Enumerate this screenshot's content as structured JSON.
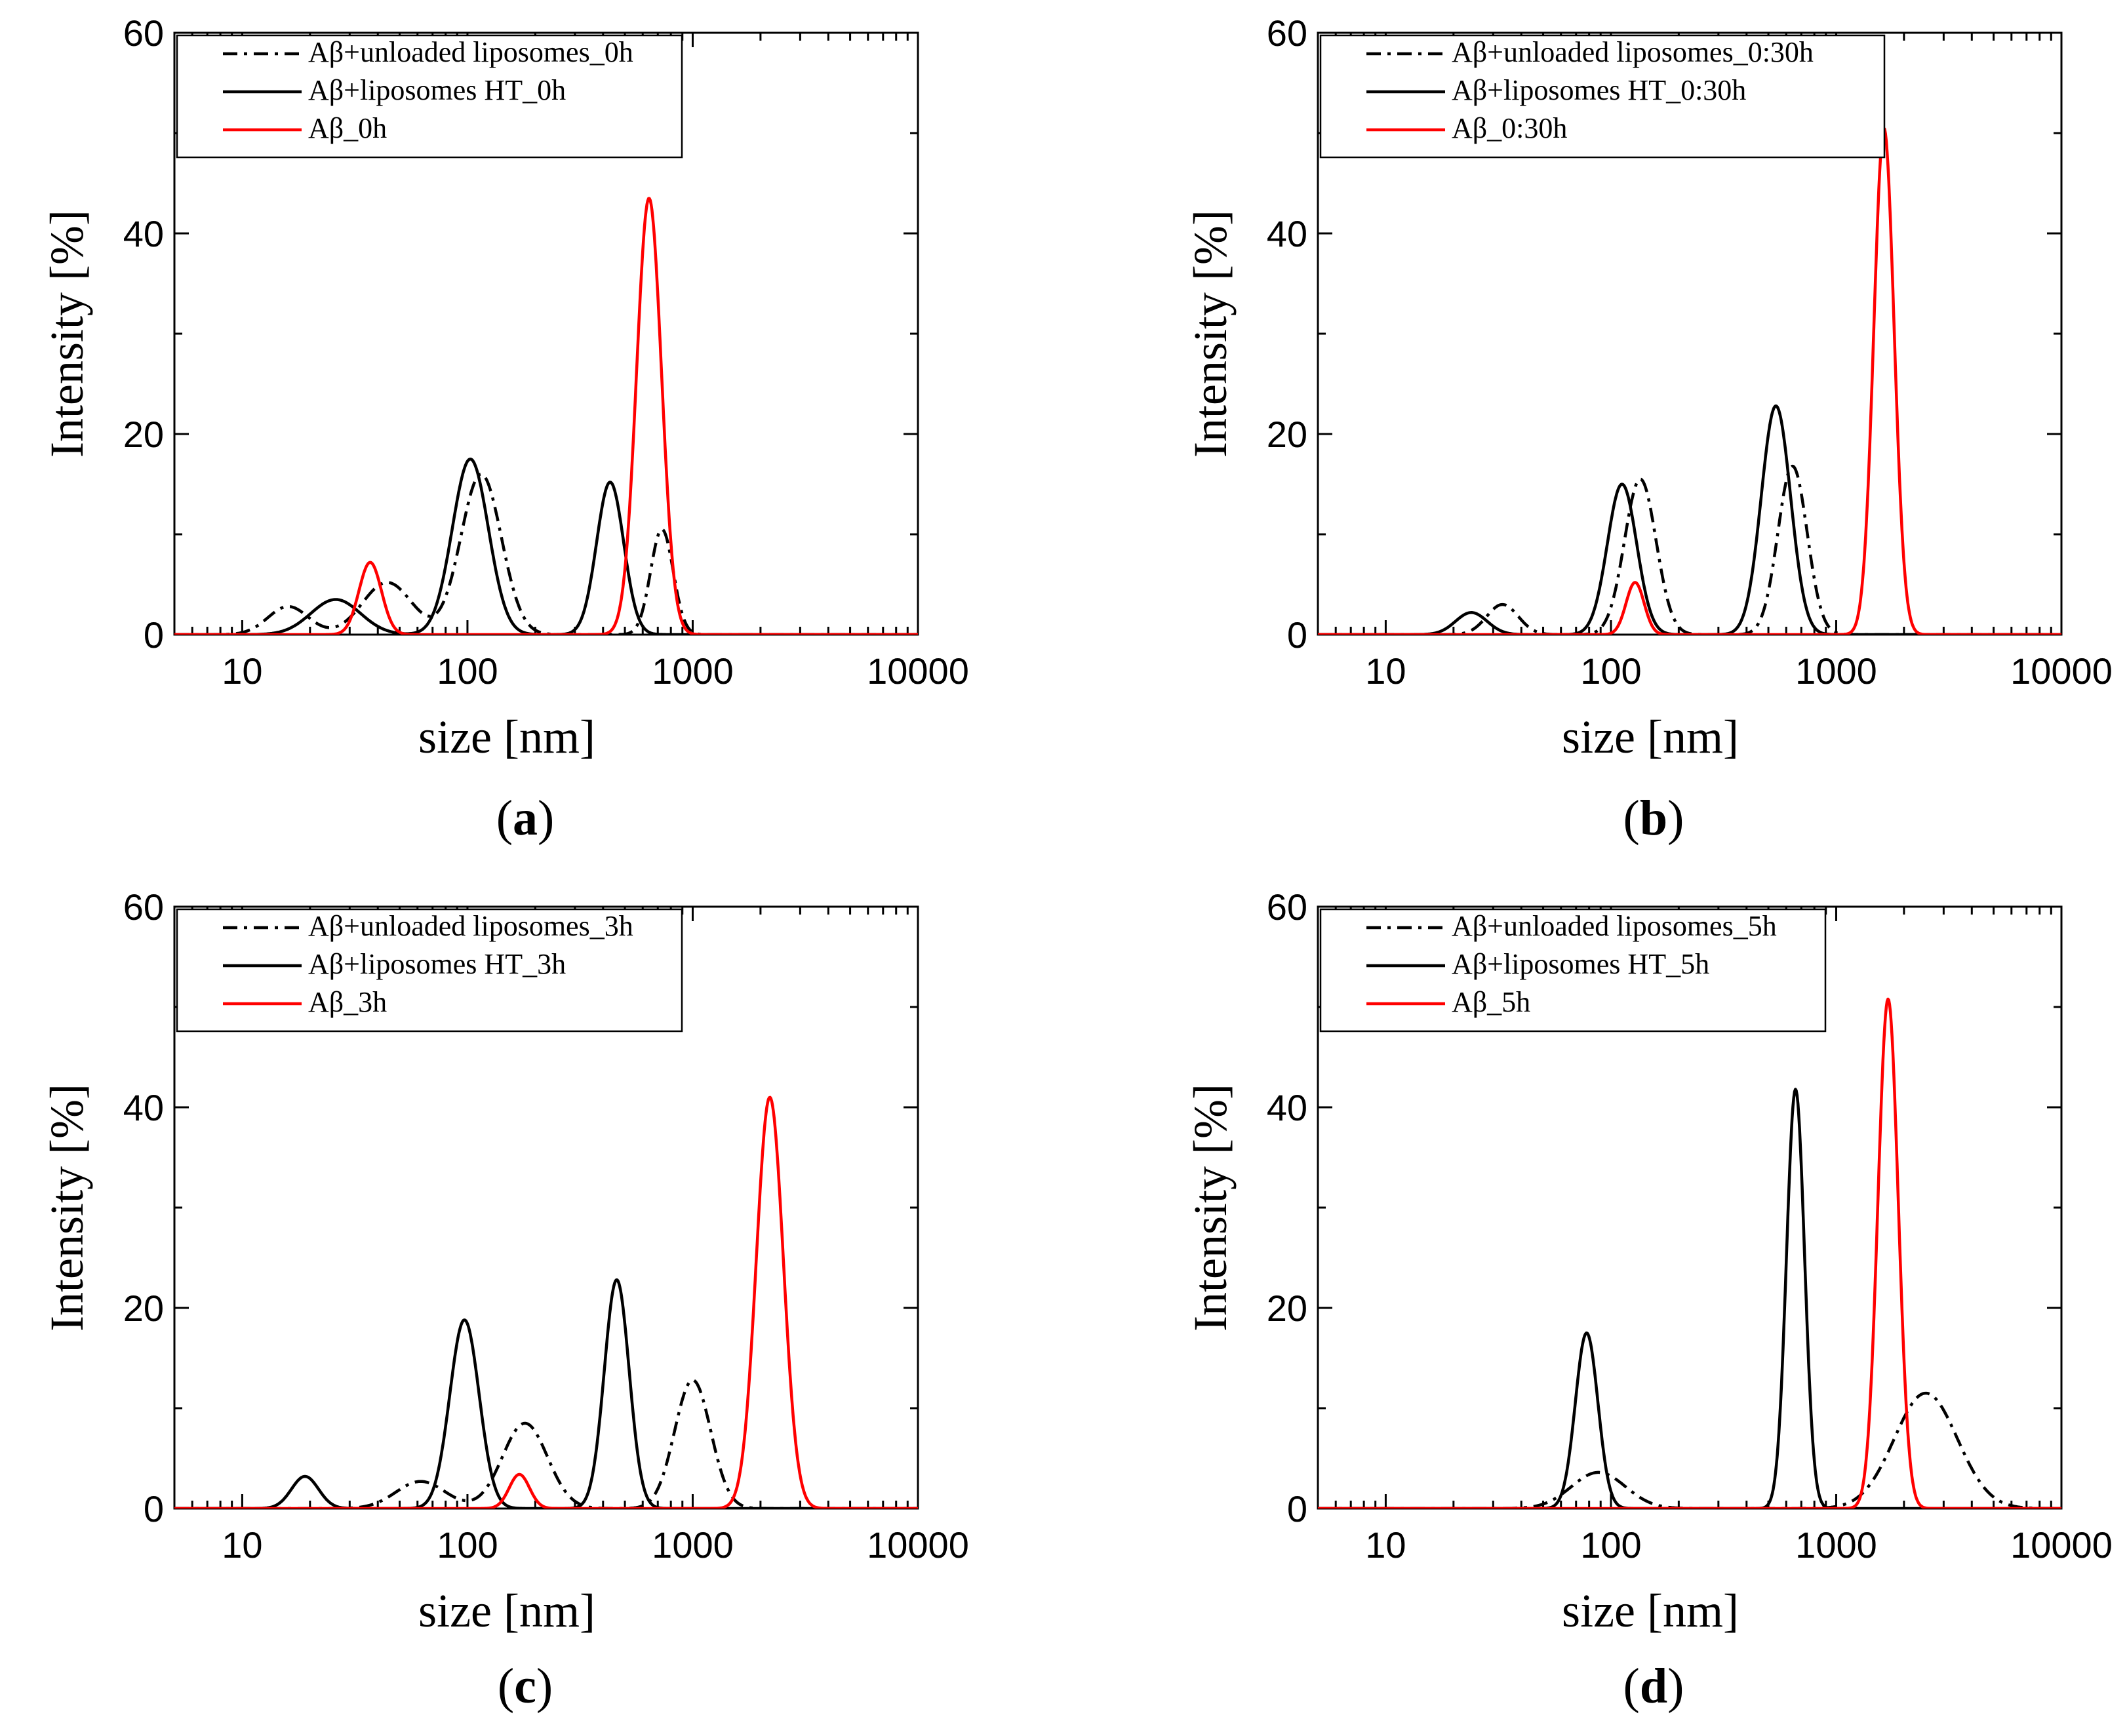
{
  "colors": {
    "black": "#000000",
    "red": "#ff0000"
  },
  "chart_data": [
    {
      "panel_label": "a",
      "type": "line",
      "title": "",
      "xlabel": "size [nm]",
      "ylabel": "Intensity [%]",
      "xscale": "log",
      "xlim": [
        5,
        10000
      ],
      "ylim": [
        0,
        60
      ],
      "xticks": [
        10,
        100,
        1000,
        10000
      ],
      "xtick_labels": [
        "10",
        "100",
        "1000",
        "10000"
      ],
      "yticks": [
        0,
        20,
        40,
        60
      ],
      "ytick_labels": [
        "0",
        "20",
        "40",
        "60"
      ],
      "legend_position": "top-left",
      "series": [
        {
          "name": "Aβ+unloaded liposomes_0h",
          "style": "dashdot",
          "color": "#000000",
          "peaks": [
            {
              "center": 16,
              "height": 2.8,
              "width": 0.09
            },
            {
              "center": 44,
              "height": 5.2,
              "width": 0.11
            },
            {
              "center": 115,
              "height": 16,
              "width": 0.09
            },
            {
              "center": 730,
              "height": 10.5,
              "width": 0.05
            }
          ]
        },
        {
          "name": "Aβ+liposomes HT_0h",
          "style": "solid",
          "color": "#000000",
          "peaks": [
            {
              "center": 26,
              "height": 3.5,
              "width": 0.11
            },
            {
              "center": 103,
              "height": 17.5,
              "width": 0.08
            },
            {
              "center": 430,
              "height": 15.2,
              "width": 0.06
            }
          ]
        },
        {
          "name": "Aβ_0h",
          "style": "solid",
          "color": "#ff0000",
          "peaks": [
            {
              "center": 37,
              "height": 7.2,
              "width": 0.05
            },
            {
              "center": 640,
              "height": 43.5,
              "width": 0.055
            }
          ]
        }
      ]
    },
    {
      "panel_label": "b",
      "type": "line",
      "title": "",
      "xlabel": "size [nm]",
      "ylabel": "Intensity [%]",
      "xscale": "log",
      "xlim": [
        5,
        10000
      ],
      "ylim": [
        0,
        60
      ],
      "xticks": [
        10,
        100,
        1000,
        10000
      ],
      "xtick_labels": [
        "10",
        "100",
        "1000",
        "10000"
      ],
      "yticks": [
        0,
        20,
        40,
        60
      ],
      "ytick_labels": [
        "0",
        "20",
        "40",
        "60"
      ],
      "legend_position": "top-left",
      "series": [
        {
          "name": "Aβ+unloaded liposomes_0:30h",
          "style": "dashdot",
          "color": "#000000",
          "peaks": [
            {
              "center": 33,
              "height": 3.0,
              "width": 0.07
            },
            {
              "center": 135,
              "height": 15.5,
              "width": 0.07
            },
            {
              "center": 640,
              "height": 16.8,
              "width": 0.065
            }
          ]
        },
        {
          "name": "Aβ+liposomes HT_0:30h",
          "style": "solid",
          "color": "#000000",
          "peaks": [
            {
              "center": 24,
              "height": 2.2,
              "width": 0.07
            },
            {
              "center": 112,
              "height": 15.0,
              "width": 0.065
            },
            {
              "center": 540,
              "height": 22.8,
              "width": 0.065
            }
          ]
        },
        {
          "name": "Aβ_0:30h",
          "style": "solid",
          "color": "#ff0000",
          "peaks": [
            {
              "center": 128,
              "height": 5.2,
              "width": 0.04
            },
            {
              "center": 1630,
              "height": 50.5,
              "width": 0.045
            }
          ]
        }
      ]
    },
    {
      "panel_label": "c",
      "type": "line",
      "title": "",
      "xlabel": "size [nm]",
      "ylabel": "Intensity [%]",
      "xscale": "log",
      "xlim": [
        5,
        10000
      ],
      "ylim": [
        0,
        60
      ],
      "xticks": [
        10,
        100,
        1000,
        10000
      ],
      "xtick_labels": [
        "10",
        "100",
        "1000",
        "10000"
      ],
      "yticks": [
        0,
        20,
        40,
        60
      ],
      "ytick_labels": [
        "0",
        "20",
        "40",
        "60"
      ],
      "legend_position": "top-left",
      "series": [
        {
          "name": "Aβ+unloaded liposomes_3h",
          "style": "dashdot",
          "color": "#000000",
          "peaks": [
            {
              "center": 62,
              "height": 2.7,
              "width": 0.11
            },
            {
              "center": 180,
              "height": 8.5,
              "width": 0.1
            },
            {
              "center": 1000,
              "height": 12.8,
              "width": 0.08
            }
          ]
        },
        {
          "name": "Aβ+liposomes HT_3h",
          "style": "solid",
          "color": "#000000",
          "peaks": [
            {
              "center": 19,
              "height": 3.2,
              "width": 0.06
            },
            {
              "center": 97,
              "height": 18.8,
              "width": 0.065
            },
            {
              "center": 460,
              "height": 22.8,
              "width": 0.055
            }
          ]
        },
        {
          "name": "Aβ_3h",
          "style": "solid",
          "color": "#ff0000",
          "peaks": [
            {
              "center": 170,
              "height": 3.4,
              "width": 0.045
            },
            {
              "center": 2200,
              "height": 41,
              "width": 0.06
            }
          ]
        }
      ]
    },
    {
      "panel_label": "d",
      "type": "line",
      "title": "",
      "xlabel": "size [nm]",
      "ylabel": "Intensity [%]",
      "xscale": "log",
      "xlim": [
        5,
        10000
      ],
      "ylim": [
        0,
        60
      ],
      "xticks": [
        10,
        100,
        1000,
        10000
      ],
      "xtick_labels": [
        "10",
        "100",
        "1000",
        "10000"
      ],
      "yticks": [
        0,
        20,
        40,
        60
      ],
      "ytick_labels": [
        "0",
        "20",
        "40",
        "60"
      ],
      "legend_position": "top-left",
      "series": [
        {
          "name": "Aβ+unloaded liposomes_5h",
          "style": "dashdot",
          "color": "#000000",
          "peaks": [
            {
              "center": 88,
              "height": 3.6,
              "width": 0.12
            },
            {
              "center": 2500,
              "height": 11.5,
              "width": 0.14
            }
          ]
        },
        {
          "name": "Aβ+liposomes HT_5h",
          "style": "solid",
          "color": "#000000",
          "peaks": [
            {
              "center": 78,
              "height": 17.5,
              "width": 0.05
            },
            {
              "center": 660,
              "height": 41.8,
              "width": 0.04
            }
          ]
        },
        {
          "name": "Aβ_5h",
          "style": "solid",
          "color": "#ff0000",
          "peaks": [
            {
              "center": 1700,
              "height": 50.8,
              "width": 0.045
            }
          ]
        }
      ]
    }
  ]
}
